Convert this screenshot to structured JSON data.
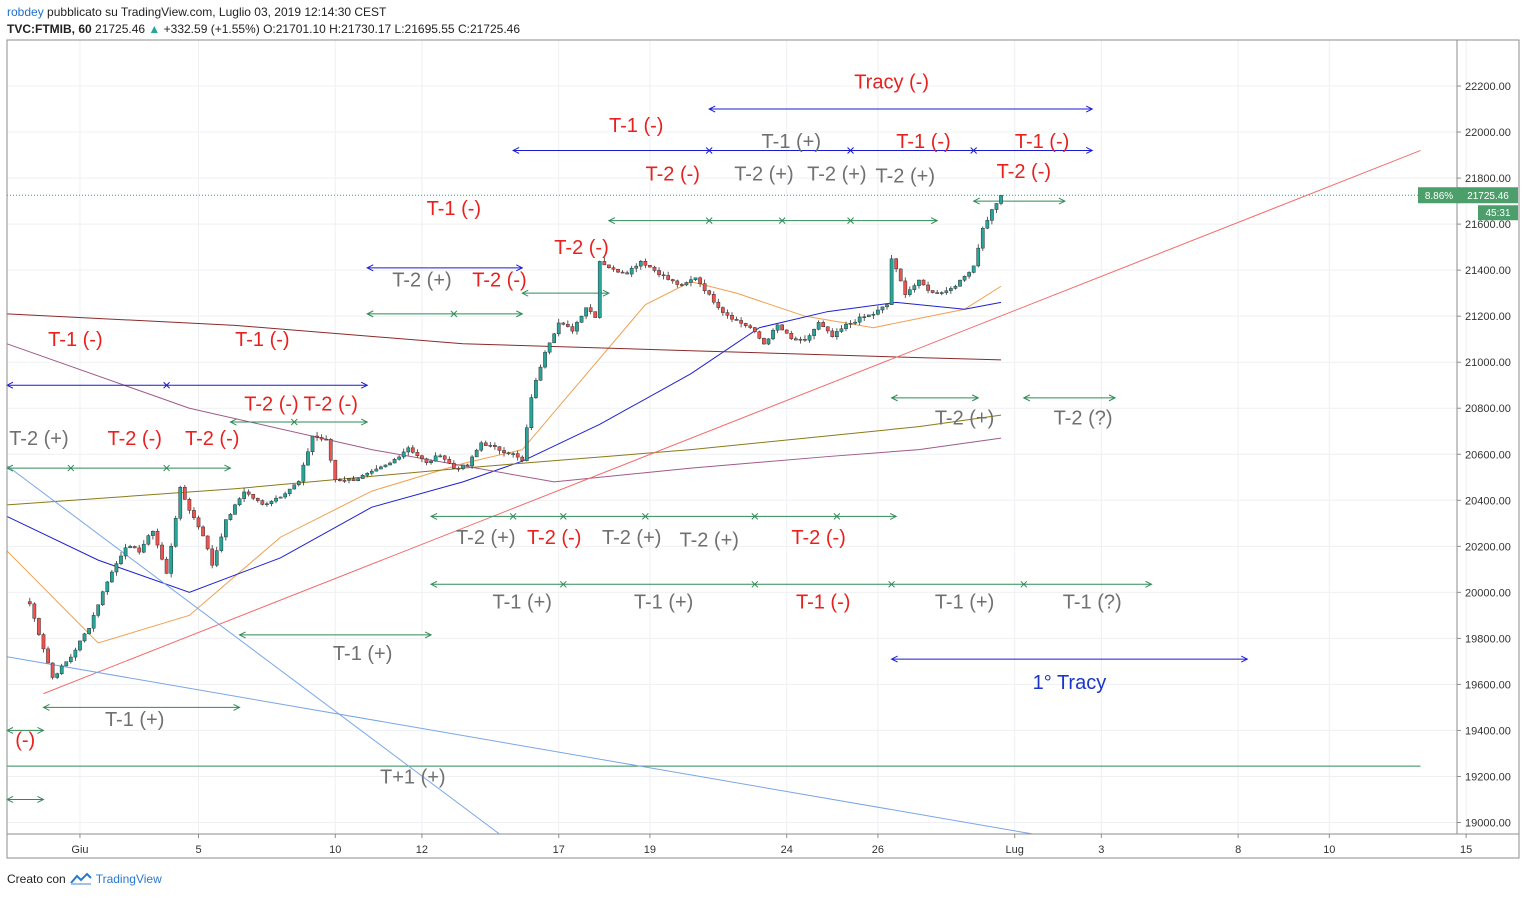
{
  "header": {
    "line1_author": "robdey",
    "line1_rest": "pubblicato su TradingView.com, Luglio 03, 2019 12:14:30 CEST",
    "symbol": "TVC:FTMIB, 60",
    "last": "21725.46",
    "arrow": "▲",
    "change": "+332.59 (+1.55%)",
    "open": "O:21701.10",
    "high": "H:21730.17",
    "low": "L:21695.55",
    "close": "C:21725.46"
  },
  "footer": {
    "created_with": "Creato con",
    "brand": "TradingView"
  },
  "colors": {
    "bull": "#26a69a",
    "bear": "#ef5350",
    "red_text": "#e8201e",
    "gray_text": "#707070",
    "blue_text": "#1a35c8",
    "green_line": "#2e8b57",
    "blue_line": "#1a1ad6",
    "red_trend": "#f26d6d",
    "light_blue_trend": "#7aa6e6",
    "ma_orange": "#f0a050",
    "ma_blue": "#2020d0",
    "ma_brown": "#8b2a2a",
    "ma_olive": "#8a7a1a",
    "ma_purple": "#a05a8a"
  },
  "chart_data": {
    "type": "candlestick",
    "symbol": "TVC:FTMIB",
    "interval": "60",
    "x_tick_labels": [
      "Giu",
      "5",
      "10",
      "12",
      "17",
      "19",
      "24",
      "26",
      "Lug",
      "3",
      "8",
      "10",
      "15"
    ],
    "y_range": [
      18950,
      22400
    ],
    "y_ticks": [
      19000,
      19200,
      19400,
      19600,
      19800,
      20000,
      20200,
      20400,
      20600,
      20800,
      21000,
      21200,
      21400,
      21600,
      21800,
      22000,
      22200
    ],
    "y_tick_labels": [
      "19000.00",
      "19200.00",
      "19400.00",
      "19600.00",
      "19800.00",
      "20000.00",
      "20200.00",
      "20400.00",
      "20600.00",
      "20800.00",
      "21000.00",
      "21200.00",
      "21400.00",
      "21600.00",
      "21800.00",
      "22000.00",
      "22200.00"
    ],
    "last_price": 21725.46,
    "last_price_label": "21725.46",
    "pct_label": "8.86%",
    "countdown_label": "45:31",
    "anchors": [
      {
        "t": 5,
        "p": 19950
      },
      {
        "t": 10,
        "p": 19630
      },
      {
        "t": 14,
        "p": 19720
      },
      {
        "t": 18,
        "p": 19850
      },
      {
        "t": 22,
        "p": 20050
      },
      {
        "t": 26,
        "p": 20200
      },
      {
        "t": 29,
        "p": 20180
      },
      {
        "t": 32,
        "p": 20270
      },
      {
        "t": 35,
        "p": 20080
      },
      {
        "t": 38,
        "p": 20450
      },
      {
        "t": 40,
        "p": 20360
      },
      {
        "t": 43,
        "p": 20250
      },
      {
        "t": 45,
        "p": 20120
      },
      {
        "t": 48,
        "p": 20310
      },
      {
        "t": 52,
        "p": 20440
      },
      {
        "t": 56,
        "p": 20380
      },
      {
        "t": 60,
        "p": 20420
      },
      {
        "t": 64,
        "p": 20480
      },
      {
        "t": 67,
        "p": 20680
      },
      {
        "t": 70,
        "p": 20660
      },
      {
        "t": 72,
        "p": 20490
      },
      {
        "t": 76,
        "p": 20490
      },
      {
        "t": 80,
        "p": 20520
      },
      {
        "t": 84,
        "p": 20560
      },
      {
        "t": 88,
        "p": 20630
      },
      {
        "t": 92,
        "p": 20560
      },
      {
        "t": 95,
        "p": 20600
      },
      {
        "t": 98,
        "p": 20540
      },
      {
        "t": 101,
        "p": 20550
      },
      {
        "t": 104,
        "p": 20650
      },
      {
        "t": 108,
        "p": 20620
      },
      {
        "t": 111,
        "p": 20600
      },
      {
        "t": 113,
        "p": 20570
      },
      {
        "t": 115,
        "p": 20850
      },
      {
        "t": 118,
        "p": 21050
      },
      {
        "t": 121,
        "p": 21170
      },
      {
        "t": 124,
        "p": 21140
      },
      {
        "t": 127,
        "p": 21240
      },
      {
        "t": 129,
        "p": 21200
      },
      {
        "t": 130,
        "p": 21440
      },
      {
        "t": 133,
        "p": 21400
      },
      {
        "t": 136,
        "p": 21390
      },
      {
        "t": 139,
        "p": 21440
      },
      {
        "t": 142,
        "p": 21400
      },
      {
        "t": 145,
        "p": 21360
      },
      {
        "t": 148,
        "p": 21330
      },
      {
        "t": 151,
        "p": 21370
      },
      {
        "t": 154,
        "p": 21290
      },
      {
        "t": 157,
        "p": 21220
      },
      {
        "t": 160,
        "p": 21180
      },
      {
        "t": 163,
        "p": 21150
      },
      {
        "t": 166,
        "p": 21080
      },
      {
        "t": 169,
        "p": 21160
      },
      {
        "t": 172,
        "p": 21100
      },
      {
        "t": 175,
        "p": 21090
      },
      {
        "t": 178,
        "p": 21170
      },
      {
        "t": 181,
        "p": 21110
      },
      {
        "t": 184,
        "p": 21160
      },
      {
        "t": 187,
        "p": 21190
      },
      {
        "t": 190,
        "p": 21210
      },
      {
        "t": 193,
        "p": 21250
      },
      {
        "t": 194,
        "p": 21450
      },
      {
        "t": 197,
        "p": 21300
      },
      {
        "t": 200,
        "p": 21350
      },
      {
        "t": 203,
        "p": 21300
      },
      {
        "t": 206,
        "p": 21310
      },
      {
        "t": 209,
        "p": 21350
      },
      {
        "t": 212,
        "p": 21420
      },
      {
        "t": 214,
        "p": 21580
      },
      {
        "t": 216,
        "p": 21660
      },
      {
        "t": 218,
        "p": 21725
      }
    ],
    "moving_averages": [
      {
        "color_key": "ma_orange",
        "points": [
          [
            0,
            20180
          ],
          [
            20,
            19780
          ],
          [
            40,
            19900
          ],
          [
            60,
            20240
          ],
          [
            80,
            20440
          ],
          [
            100,
            20560
          ],
          [
            113,
            20620
          ],
          [
            125,
            20900
          ],
          [
            140,
            21250
          ],
          [
            150,
            21350
          ],
          [
            160,
            21300
          ],
          [
            175,
            21200
          ],
          [
            190,
            21150
          ],
          [
            210,
            21230
          ],
          [
            218,
            21330
          ]
        ]
      },
      {
        "color_key": "ma_blue",
        "points": [
          [
            0,
            20330
          ],
          [
            20,
            20140
          ],
          [
            40,
            20000
          ],
          [
            60,
            20150
          ],
          [
            80,
            20370
          ],
          [
            100,
            20480
          ],
          [
            113,
            20570
          ],
          [
            130,
            20730
          ],
          [
            150,
            20950
          ],
          [
            165,
            21150
          ],
          [
            180,
            21220
          ],
          [
            195,
            21260
          ],
          [
            210,
            21230
          ],
          [
            218,
            21260
          ]
        ]
      },
      {
        "color_key": "ma_brown",
        "points": [
          [
            0,
            21210
          ],
          [
            50,
            21160
          ],
          [
            100,
            21080
          ],
          [
            150,
            21050
          ],
          [
            200,
            21020
          ],
          [
            218,
            21010
          ]
        ]
      },
      {
        "color_key": "ma_olive",
        "points": [
          [
            0,
            20380
          ],
          [
            50,
            20450
          ],
          [
            100,
            20540
          ],
          [
            150,
            20620
          ],
          [
            200,
            20720
          ],
          [
            218,
            20770
          ]
        ]
      },
      {
        "color_key": "ma_purple",
        "points": [
          [
            0,
            21080
          ],
          [
            40,
            20800
          ],
          [
            80,
            20620
          ],
          [
            120,
            20480
          ],
          [
            150,
            20540
          ],
          [
            180,
            20590
          ],
          [
            200,
            20620
          ],
          [
            218,
            20670
          ]
        ]
      }
    ],
    "trendlines": [
      {
        "color_key": "red_trend",
        "from": [
          8,
          19560
        ],
        "to": [
          310,
          21920
        ]
      },
      {
        "color_key": "light_blue_trend",
        "from": [
          0,
          20550
        ],
        "to": [
          108,
          18950
        ]
      },
      {
        "color_key": "light_blue_trend",
        "from": [
          0,
          19720
        ],
        "to": [
          225,
          18950
        ]
      }
    ],
    "horizontal_lines": [
      {
        "color_key": "green_line",
        "price": 19245,
        "from_t": 0,
        "to_t": 310
      }
    ],
    "range_arrows": [
      {
        "color_key": "blue_line",
        "t1": 154,
        "t2": 238,
        "p": 22100,
        "ticks": []
      },
      {
        "color_key": "blue_line",
        "t1": 111,
        "t2": 238,
        "p": 21920,
        "ticks": [
          154,
          185,
          212
        ]
      },
      {
        "color_key": "blue_line",
        "t1": 79,
        "t2": 113,
        "p": 21410,
        "ticks": []
      },
      {
        "color_key": "blue_line",
        "t1": 0,
        "t2": 79,
        "p": 20900,
        "ticks": [
          35
        ]
      },
      {
        "color_key": "blue_line",
        "t1": 194,
        "t2": 272,
        "p": 19710,
        "ticks": []
      },
      {
        "color_key": "green_line",
        "t1": 132,
        "t2": 204,
        "p": 21615,
        "ticks": [
          154,
          170,
          185
        ]
      },
      {
        "color_key": "green_line",
        "t1": 212,
        "t2": 232,
        "p": 21700,
        "ticks": []
      },
      {
        "color_key": "green_line",
        "t1": 113,
        "t2": 132,
        "p": 21300,
        "ticks": []
      },
      {
        "color_key": "green_line",
        "t1": 79,
        "t2": 113,
        "p": 21210,
        "ticks": [
          98
        ]
      },
      {
        "color_key": "green_line",
        "t1": 49,
        "t2": 79,
        "p": 20740,
        "ticks": [
          63
        ]
      },
      {
        "color_key": "green_line",
        "t1": 0,
        "t2": 49,
        "p": 20540,
        "ticks": [
          14,
          35
        ]
      },
      {
        "color_key": "green_line",
        "t1": 93,
        "t2": 195,
        "p": 20330,
        "ticks": [
          111,
          122,
          140,
          164,
          182
        ]
      },
      {
        "color_key": "green_line",
        "t1": 194,
        "t2": 213,
        "p": 20845,
        "ticks": []
      },
      {
        "color_key": "green_line",
        "t1": 223,
        "t2": 243,
        "p": 20845,
        "ticks": []
      },
      {
        "color_key": "green_line",
        "t1": 93,
        "t2": 251,
        "p": 20035,
        "ticks": [
          122,
          164,
          194,
          223
        ]
      },
      {
        "color_key": "green_line",
        "t1": 51,
        "t2": 93,
        "p": 19815,
        "ticks": []
      },
      {
        "color_key": "green_line",
        "t1": 8,
        "t2": 51,
        "p": 19500,
        "ticks": []
      },
      {
        "color_key": "green_line",
        "t1": 0,
        "t2": 8,
        "p": 19400,
        "ticks": []
      },
      {
        "color_key": "green_line",
        "t1": 0,
        "t2": 8,
        "p": 19100,
        "ticks": []
      }
    ],
    "annotations": [
      {
        "text": "Tracy (-)",
        "color_key": "red_text",
        "t": 194,
        "p": 22190
      },
      {
        "text": "T-1 (-)",
        "color_key": "red_text",
        "t": 138,
        "p": 22000
      },
      {
        "text": "T-1 (+)",
        "color_key": "gray_text",
        "t": 172,
        "p": 21930
      },
      {
        "text": "T-1 (-)",
        "color_key": "red_text",
        "t": 201,
        "p": 21930
      },
      {
        "text": "T-1 (-)",
        "color_key": "red_text",
        "t": 227,
        "p": 21930
      },
      {
        "text": "T-2 (-)",
        "color_key": "red_text",
        "t": 146,
        "p": 21790
      },
      {
        "text": "T-2 (+)",
        "color_key": "gray_text",
        "t": 166,
        "p": 21790
      },
      {
        "text": "T-2 (+)",
        "color_key": "gray_text",
        "t": 182,
        "p": 21790
      },
      {
        "text": "T-2 (+)",
        "color_key": "gray_text",
        "t": 197,
        "p": 21780
      },
      {
        "text": "T-2 (-)",
        "color_key": "red_text",
        "t": 223,
        "p": 21800
      },
      {
        "text": "T-1 (-)",
        "color_key": "red_text",
        "t": 98,
        "p": 21640
      },
      {
        "text": "T-2 (-)",
        "color_key": "red_text",
        "t": 126,
        "p": 21470
      },
      {
        "text": "T-2 (+)",
        "color_key": "gray_text",
        "t": 91,
        "p": 21330
      },
      {
        "text": "T-2 (-)",
        "color_key": "red_text",
        "t": 108,
        "p": 21330
      },
      {
        "text": "T-1 (-)",
        "color_key": "red_text",
        "t": 15,
        "p": 21070
      },
      {
        "text": "T-1 (-)",
        "color_key": "red_text",
        "t": 56,
        "p": 21070
      },
      {
        "text": "T-2 (-)",
        "color_key": "red_text",
        "t": 58,
        "p": 20790
      },
      {
        "text": "T-2 (-)",
        "color_key": "red_text",
        "t": 71,
        "p": 20790
      },
      {
        "text": "T-2 (+)",
        "color_key": "gray_text",
        "t": 7,
        "p": 20640
      },
      {
        "text": "T-2 (-)",
        "color_key": "red_text",
        "t": 28,
        "p": 20640
      },
      {
        "text": "T-2 (-)",
        "color_key": "red_text",
        "t": 45,
        "p": 20640
      },
      {
        "text": "T-2 (+)",
        "color_key": "gray_text",
        "t": 210,
        "p": 20730
      },
      {
        "text": "T-2 (?)",
        "color_key": "gray_text",
        "t": 236,
        "p": 20730
      },
      {
        "text": "T-2 (+)",
        "color_key": "gray_text",
        "t": 105,
        "p": 20210
      },
      {
        "text": "T-2 (-)",
        "color_key": "red_text",
        "t": 120,
        "p": 20210
      },
      {
        "text": "T-2 (+)",
        "color_key": "gray_text",
        "t": 137,
        "p": 20210
      },
      {
        "text": "T-2 (+)",
        "color_key": "gray_text",
        "t": 154,
        "p": 20200
      },
      {
        "text": "T-2 (-)",
        "color_key": "red_text",
        "t": 178,
        "p": 20210
      },
      {
        "text": "T-1 (+)",
        "color_key": "gray_text",
        "t": 113,
        "p": 19930
      },
      {
        "text": "T-1 (+)",
        "color_key": "gray_text",
        "t": 144,
        "p": 19930
      },
      {
        "text": "T-1 (-)",
        "color_key": "red_text",
        "t": 179,
        "p": 19930
      },
      {
        "text": "T-1 (+)",
        "color_key": "gray_text",
        "t": 210,
        "p": 19930
      },
      {
        "text": "T-1 (?)",
        "color_key": "gray_text",
        "t": 238,
        "p": 19930
      },
      {
        "text": "T-1 (+)",
        "color_key": "gray_text",
        "t": 78,
        "p": 19705
      },
      {
        "text": "1° Tracy",
        "color_key": "blue_text",
        "t": 233,
        "p": 19580
      },
      {
        "text": "T-1 (+)",
        "color_key": "gray_text",
        "t": 28,
        "p": 19420
      },
      {
        "text": "(-)",
        "color_key": "red_text",
        "t": 4,
        "p": 19330
      },
      {
        "text": "T+1 (+)",
        "color_key": "gray_text",
        "t": 89,
        "p": 19170
      }
    ]
  }
}
